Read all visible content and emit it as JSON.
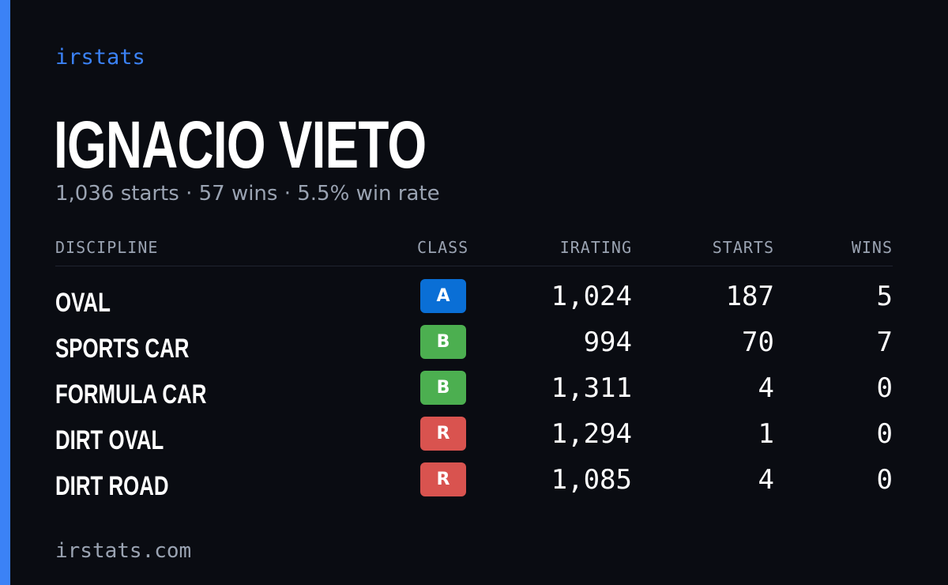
{
  "brand": "irstats",
  "player": {
    "name": "IGNACIO VIETO",
    "summary": "1,036 starts · 57 wins · 5.5% win rate"
  },
  "table": {
    "headers": {
      "discipline": "DISCIPLINE",
      "class": "CLASS",
      "irating": "IRATING",
      "starts": "STARTS",
      "wins": "WINS"
    },
    "rows": [
      {
        "discipline": "OVAL",
        "class": "A",
        "class_color": "#0a6fd6",
        "irating": "1,024",
        "starts": "187",
        "wins": "5"
      },
      {
        "discipline": "SPORTS CAR",
        "class": "B",
        "class_color": "#4caf50",
        "irating": "994",
        "starts": "70",
        "wins": "7"
      },
      {
        "discipline": "FORMULA CAR",
        "class": "B",
        "class_color": "#4caf50",
        "irating": "1,311",
        "starts": "4",
        "wins": "0"
      },
      {
        "discipline": "DIRT OVAL",
        "class": "R",
        "class_color": "#d9534f",
        "irating": "1,294",
        "starts": "1",
        "wins": "0"
      },
      {
        "discipline": "DIRT ROAD",
        "class": "R",
        "class_color": "#d9534f",
        "irating": "1,085",
        "starts": "4",
        "wins": "0"
      }
    ]
  },
  "footer": "irstats.com",
  "colors": {
    "background": "#0a0c12",
    "accent": "#3b82f6",
    "muted_text": "#9aa3b2",
    "class_a": "#0a6fd6",
    "class_b": "#4caf50",
    "class_r": "#d9534f"
  }
}
